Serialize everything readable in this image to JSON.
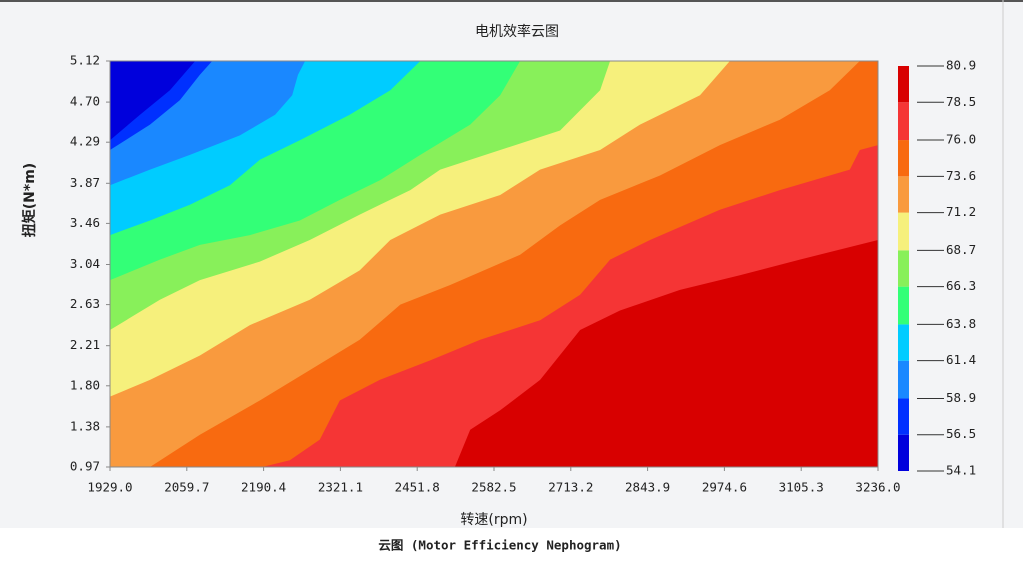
{
  "chart_data": {
    "type": "contour",
    "title": "电机效率云图",
    "x_label": "转速(rpm)",
    "y_label": "扭矩(N*m)",
    "caption": "云图 (Motor Efficiency Nephogram)",
    "xlim": [
      1929.0,
      3236.0
    ],
    "xticks": [
      {
        "value": 1929,
        "label": "1929.0"
      },
      2059.7,
      2190.4,
      2321.1,
      2451.8,
      2582.5,
      2713.2,
      2843.9,
      2974.6,
      3105.3,
      {
        "value": 3236,
        "label": "3236.0"
      }
    ],
    "ylim": [
      0.97,
      5.12
    ],
    "yticks": [
      0.97,
      1.38,
      {
        "value": 1.8,
        "label": "1.80"
      },
      2.21,
      2.63,
      3.04,
      3.46,
      3.87,
      4.29,
      {
        "value": 4.7,
        "label": "4.70"
      },
      5.12
    ],
    "levels": [
      54.1,
      56.5,
      58.9,
      61.4,
      63.8,
      66.3,
      68.7,
      71.2,
      73.6,
      {
        "value": 76,
        "label": "76.0"
      },
      78.5,
      80.9
    ],
    "colors": [
      "#0000dc",
      "#0030ff",
      "#1a88ff",
      "#00ccff",
      "#33ff77",
      "#88f05a",
      "#f6f07c",
      "#f99a3e",
      "#f86a10",
      "#f53535",
      "#d80000"
    ],
    "contours": [
      {
        "x": [
          1929,
          1980,
          2031,
          2074
        ],
        "y": [
          4.31,
          4.57,
          4.82,
          5.12
        ]
      },
      {
        "x": [
          1929,
          1997,
          2048,
          2082,
          2103
        ],
        "y": [
          4.21,
          4.47,
          4.72,
          4.98,
          5.12
        ]
      },
      {
        "x": [
          1929,
          1997,
          2065,
          2150,
          2210,
          2239,
          2249,
          2261
        ],
        "y": [
          3.85,
          4.01,
          4.16,
          4.36,
          4.57,
          4.77,
          4.98,
          5.12
        ]
      },
      {
        "x": [
          1929,
          1997,
          2065,
          2133,
          2184,
          2252,
          2337,
          2406,
          2457
        ],
        "y": [
          3.34,
          3.49,
          3.65,
          3.85,
          4.11,
          4.31,
          4.57,
          4.82,
          5.12
        ]
      },
      {
        "x": [
          1929,
          2014,
          2082,
          2167,
          2252,
          2320,
          2388,
          2457,
          2542,
          2593,
          2627
        ],
        "y": [
          2.88,
          3.09,
          3.24,
          3.34,
          3.49,
          3.7,
          3.9,
          4.16,
          4.47,
          4.77,
          5.12
        ]
      },
      {
        "x": [
          1929,
          2014,
          2082,
          2184,
          2269,
          2354,
          2440,
          2491,
          2593,
          2695,
          2763,
          2780
        ],
        "y": [
          2.37,
          2.68,
          2.88,
          3.07,
          3.29,
          3.55,
          3.8,
          4.01,
          4.21,
          4.41,
          4.82,
          5.12
        ]
      },
      {
        "x": [
          1929,
          1997,
          2082,
          2167,
          2269,
          2354,
          2406,
          2491,
          2593,
          2661,
          2763,
          2831,
          2933,
          2984
        ],
        "y": [
          1.69,
          1.86,
          2.11,
          2.42,
          2.68,
          2.98,
          3.29,
          3.55,
          3.75,
          4.01,
          4.21,
          4.47,
          4.77,
          5.12
        ]
      },
      {
        "x": [
          1997,
          2082,
          2184,
          2269,
          2354,
          2423,
          2508,
          2627,
          2695,
          2763,
          2865,
          2967,
          3069,
          3154,
          3205
        ],
        "y": [
          0.97,
          1.3,
          1.65,
          1.96,
          2.27,
          2.63,
          2.83,
          3.14,
          3.44,
          3.7,
          3.95,
          4.26,
          4.52,
          4.82,
          5.12
        ]
      },
      {
        "x": [
          2188,
          2235,
          2286,
          2320,
          2388,
          2474,
          2559,
          2661,
          2729,
          2780,
          2848,
          2967,
          3069,
          3188,
          3205,
          3236
        ],
        "y": [
          0.97,
          1.04,
          1.25,
          1.65,
          1.86,
          2.06,
          2.27,
          2.47,
          2.73,
          3.09,
          3.29,
          3.6,
          3.8,
          4.01,
          4.21,
          4.26
        ]
      },
      {
        "x": [
          2516,
          2542,
          2593,
          2661,
          2729,
          2797,
          2899,
          3001,
          3103,
          3236
        ],
        "y": [
          0.97,
          1.35,
          1.55,
          1.86,
          2.37,
          2.57,
          2.78,
          2.93,
          3.09,
          3.29
        ]
      }
    ]
  }
}
